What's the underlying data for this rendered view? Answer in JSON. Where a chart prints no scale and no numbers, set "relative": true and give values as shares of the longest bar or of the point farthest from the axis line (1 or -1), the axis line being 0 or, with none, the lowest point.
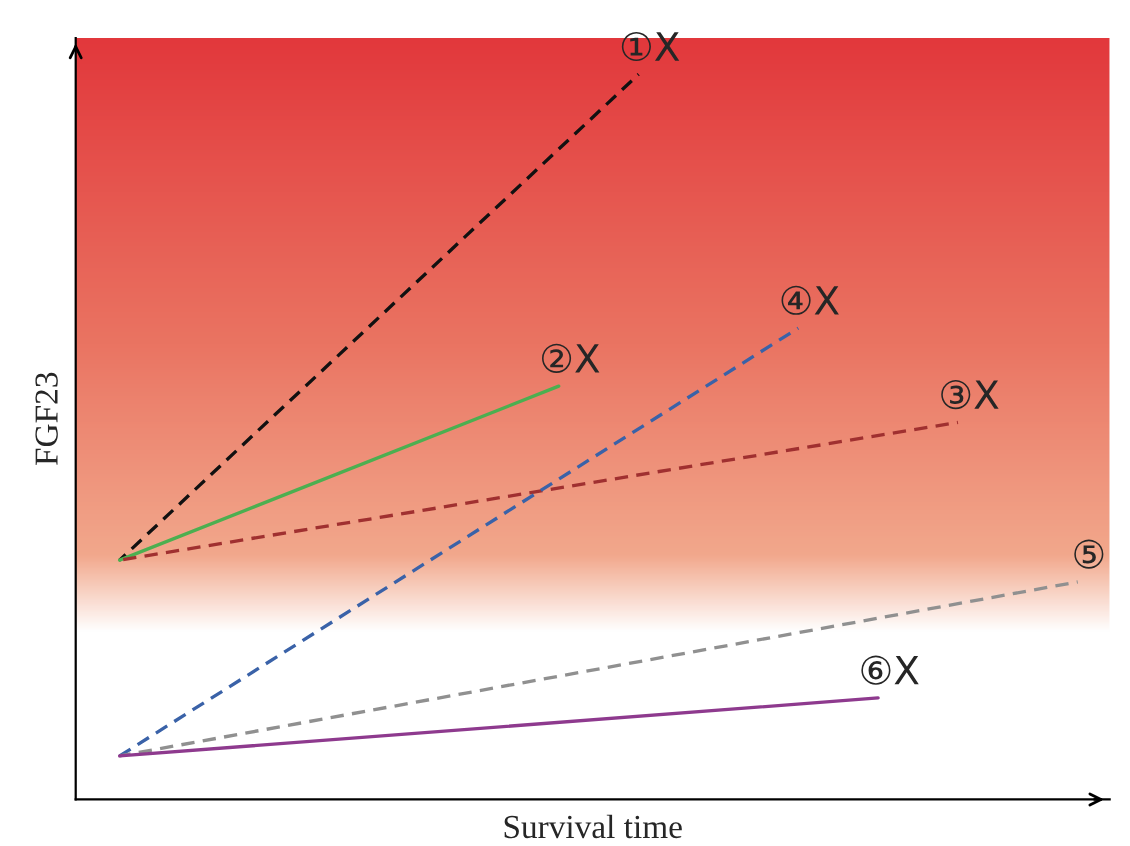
{
  "chart_data": {
    "type": "line",
    "relative": true,
    "xlabel": "Survival time",
    "ylabel": "FGF23",
    "legend": false,
    "marker": "none",
    "categories": [
      null,
      null,
      null,
      null,
      null,
      null,
      null,
      null,
      null,
      null,
      null,
      null,
      null,
      null,
      null,
      null,
      null,
      null,
      null,
      null,
      null,
      null,
      null,
      null,
      null,
      null
    ],
    "series": [
      {
        "name": "①X",
        "color": "#111111",
        "line_style": "dashed",
        "values": [
          null,
          0.33,
          null,
          null,
          null,
          null,
          null,
          null,
          null,
          null,
          null,
          null,
          null,
          null,
          1.0,
          null,
          null,
          null,
          null,
          null,
          null,
          null,
          null,
          null,
          null,
          null
        ]
      },
      {
        "name": "②X",
        "color": "#4caf50",
        "line_style": "solid",
        "values": [
          null,
          0.33,
          null,
          null,
          null,
          null,
          null,
          null,
          null,
          null,
          null,
          null,
          0.57,
          null,
          null,
          null,
          null,
          null,
          null,
          null,
          null,
          null,
          null,
          null,
          null,
          null
        ]
      },
      {
        "name": "③X",
        "color": "#a03030",
        "line_style": "dashed",
        "values": [
          null,
          0.33,
          null,
          null,
          null,
          null,
          null,
          null,
          null,
          null,
          null,
          null,
          null,
          null,
          null,
          null,
          null,
          null,
          null,
          null,
          null,
          null,
          0.52,
          null,
          null,
          null
        ]
      },
      {
        "name": "④X",
        "color": "#3a62a8",
        "line_style": "dashed",
        "values": [
          null,
          0.06,
          null,
          null,
          null,
          null,
          null,
          null,
          null,
          null,
          null,
          null,
          null,
          null,
          null,
          null,
          null,
          null,
          0.65,
          null,
          null,
          null,
          null,
          null,
          null,
          null
        ]
      },
      {
        "name": "⑤",
        "color": "#909090",
        "line_style": "dashed",
        "values": [
          null,
          0.06,
          null,
          null,
          null,
          null,
          null,
          null,
          null,
          null,
          null,
          null,
          null,
          null,
          null,
          null,
          null,
          null,
          null,
          null,
          null,
          null,
          null,
          null,
          null,
          0.3
        ]
      },
      {
        "name": "⑥X",
        "color": "#8e3a8e",
        "line_style": "solid",
        "values": [
          null,
          0.06,
          null,
          null,
          null,
          null,
          null,
          null,
          null,
          null,
          null,
          null,
          null,
          null,
          null,
          null,
          null,
          null,
          null,
          null,
          0.14,
          null,
          null,
          null,
          null,
          null
        ]
      }
    ]
  }
}
